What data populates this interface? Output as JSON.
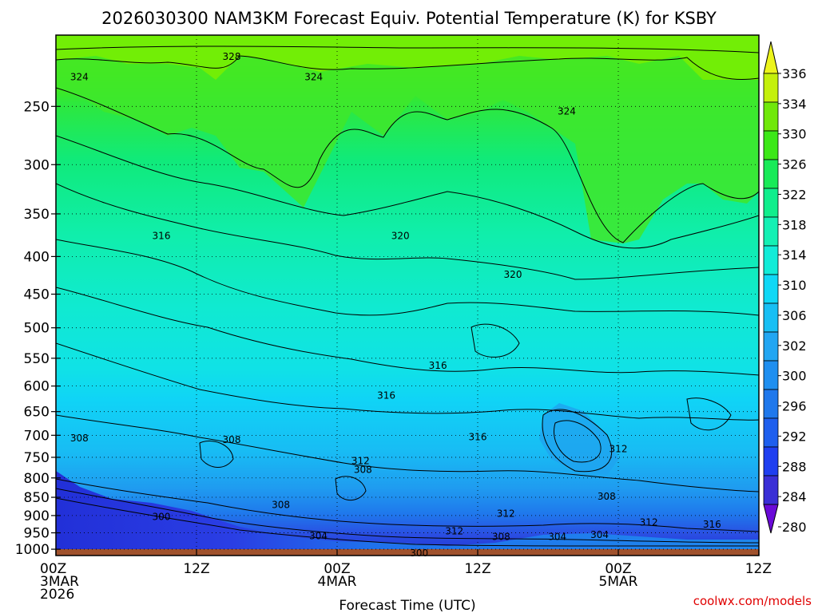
{
  "title": "2026030300 NAM3KM Forecast Equiv. Potential Temperature (K) for KSBY",
  "credit": "coolwx.com/models",
  "colors": {
    "ground": "#a0522d",
    "contour": "#000000",
    "credit": "#e00000"
  },
  "chart_data": {
    "type": "heatmap",
    "title": "2026030300 NAM3KM Forecast Equiv. Potential Temperature (K) for KSBY",
    "xlabel": "Forecast Time (UTC)",
    "ylabel": "",
    "x_ticks": [
      {
        "hour": 0,
        "label": [
          "00Z",
          "3MAR",
          "2026"
        ]
      },
      {
        "hour": 12,
        "label": [
          "12Z"
        ]
      },
      {
        "hour": 24,
        "label": [
          "00Z",
          "4MAR"
        ]
      },
      {
        "hour": 36,
        "label": [
          "12Z"
        ]
      },
      {
        "hour": 48,
        "label": [
          "00Z",
          "5MAR"
        ]
      },
      {
        "hour": 60,
        "label": [
          "12Z"
        ]
      }
    ],
    "xlim": [
      0,
      60
    ],
    "y_ticks": [
      250,
      300,
      350,
      400,
      450,
      500,
      550,
      600,
      650,
      700,
      750,
      800,
      850,
      900,
      950,
      1000
    ],
    "ylim": [
      200,
      1020
    ],
    "y_scale": "log",
    "grid": "dotted horizontal",
    "colorbar": {
      "levels": [
        280,
        284,
        288,
        292,
        296,
        300,
        302,
        306,
        310,
        314,
        318,
        322,
        326,
        330,
        334,
        336
      ],
      "colors": [
        "#6a0ad8",
        "#3a2fd6",
        "#1f3ff0",
        "#1e5fee",
        "#1f78ec",
        "#1f8ff0",
        "#22a6f2",
        "#18bff4",
        "#10d8f6",
        "#12ecd8",
        "#14f0b4",
        "#10ee8c",
        "#18ea58",
        "#3ce818",
        "#70e80a",
        "#c4f00c",
        "#ecf41c"
      ]
    },
    "contour_labels": [
      {
        "hour": 15.0,
        "pressure": 214,
        "value": 328
      },
      {
        "hour": 2.0,
        "pressure": 228,
        "value": 324
      },
      {
        "hour": 22.0,
        "pressure": 228,
        "value": 324
      },
      {
        "hour": 43.6,
        "pressure": 254,
        "value": 324
      },
      {
        "hour": 9.0,
        "pressure": 375,
        "value": 316
      },
      {
        "hour": 29.4,
        "pressure": 375,
        "value": 320
      },
      {
        "hour": 39.0,
        "pressure": 423,
        "value": 320
      },
      {
        "hour": 32.6,
        "pressure": 563,
        "value": 316
      },
      {
        "hour": 28.2,
        "pressure": 618,
        "value": 316
      },
      {
        "hour": 2.0,
        "pressure": 706,
        "value": 308
      },
      {
        "hour": 15.0,
        "pressure": 710,
        "value": 308
      },
      {
        "hour": 36.0,
        "pressure": 704,
        "value": 316
      },
      {
        "hour": 48.0,
        "pressure": 731,
        "value": 312
      },
      {
        "hour": 26.0,
        "pressure": 759,
        "value": 312
      },
      {
        "hour": 26.2,
        "pressure": 780,
        "value": 308
      },
      {
        "hour": 47.0,
        "pressure": 848,
        "value": 308
      },
      {
        "hour": 19.2,
        "pressure": 870,
        "value": 308
      },
      {
        "hour": 38.4,
        "pressure": 895,
        "value": 312
      },
      {
        "hour": 9.0,
        "pressure": 904,
        "value": 300
      },
      {
        "hour": 50.6,
        "pressure": 920,
        "value": 312
      },
      {
        "hour": 56.0,
        "pressure": 925,
        "value": 316
      },
      {
        "hour": 34.0,
        "pressure": 945,
        "value": 312
      },
      {
        "hour": 22.4,
        "pressure": 960,
        "value": 304
      },
      {
        "hour": 38.0,
        "pressure": 962,
        "value": 308
      },
      {
        "hour": 42.8,
        "pressure": 962,
        "value": 304
      },
      {
        "hour": 46.4,
        "pressure": 956,
        "value": 304
      },
      {
        "hour": 31.0,
        "pressure": 1012,
        "value": 300
      }
    ]
  }
}
